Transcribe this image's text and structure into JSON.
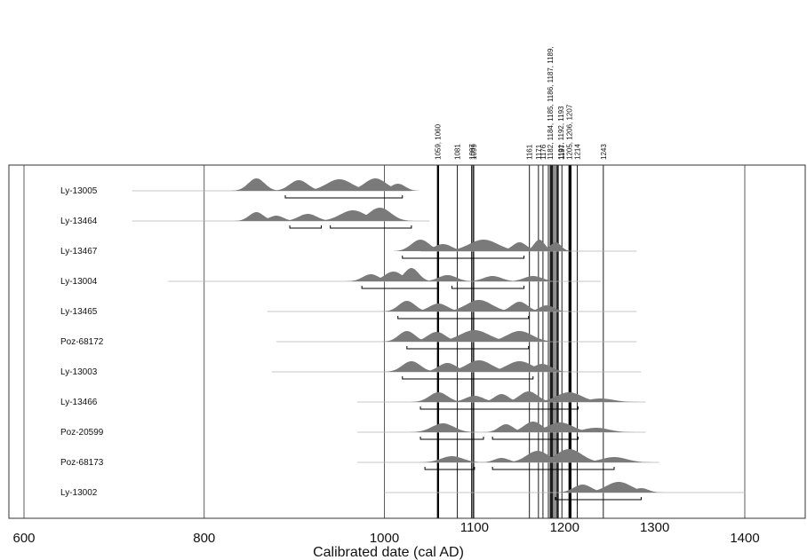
{
  "chart_data": {
    "type": "area",
    "xlabel": "Calibrated date (cal AD)",
    "x_ticks": [
      600,
      800,
      1000,
      1100,
      1200,
      1300,
      1400
    ],
    "xlim": [
      590,
      1450
    ],
    "events": [
      {
        "label": "1059, 1060",
        "years": [
          1059,
          1060
        ]
      },
      {
        "label": "1081",
        "years": [
          1081
        ]
      },
      {
        "label": "1097",
        "years": [
          1097
        ]
      },
      {
        "label": "1099",
        "years": [
          1099
        ]
      },
      {
        "label": "1161",
        "years": [
          1161
        ]
      },
      {
        "label": "1171",
        "years": [
          1171
        ]
      },
      {
        "label": "1176",
        "years": [
          1176
        ]
      },
      {
        "label": "1182, 1184, 1185, 1186, 1187, 1189,",
        "years": [
          1182,
          1184,
          1185,
          1186,
          1187,
          1189
        ]
      },
      {
        "label": "1191, 1192, 1193",
        "years": [
          1191,
          1192,
          1193
        ]
      },
      {
        "label": "1197",
        "years": [
          1197
        ]
      },
      {
        "label": "1205, 1206, 1207",
        "years": [
          1205,
          1206,
          1207
        ]
      },
      {
        "label": "1214",
        "years": [
          1214
        ]
      },
      {
        "label": "1243",
        "years": [
          1243
        ]
      }
    ],
    "samples": [
      {
        "name": "Ly-13005",
        "tail": [
          720,
          1030
        ],
        "peaks": [
          [
            858,
            14,
            9
          ],
          [
            905,
            12,
            10
          ],
          [
            950,
            13,
            14
          ],
          [
            990,
            14,
            12
          ],
          [
            1015,
            8,
            8
          ]
        ],
        "ranges": [
          [
            890,
            1020
          ]
        ]
      },
      {
        "name": "Ly-13464",
        "tail": [
          720,
          1050
        ],
        "peaks": [
          [
            858,
            10,
            8
          ],
          [
            880,
            6,
            8
          ],
          [
            915,
            8,
            10
          ],
          [
            965,
            12,
            14
          ],
          [
            995,
            15,
            12
          ]
        ],
        "ranges": [
          [
            895,
            930
          ],
          [
            940,
            1030
          ]
        ]
      },
      {
        "name": "Ly-13467",
        "tail": [
          1040,
          1280
        ],
        "peaks": [
          [
            1040,
            13,
            10
          ],
          [
            1065,
            8,
            10
          ],
          [
            1110,
            13,
            16
          ],
          [
            1150,
            10,
            8
          ],
          [
            1172,
            13,
            6
          ],
          [
            1190,
            10,
            6
          ]
        ],
        "ranges": [
          [
            1020,
            1155
          ]
        ]
      },
      {
        "name": "Ly-13004",
        "tail": [
          760,
          1240
        ],
        "peaks": [
          [
            985,
            8,
            9
          ],
          [
            1010,
            11,
            10
          ],
          [
            1030,
            15,
            8
          ],
          [
            1070,
            7,
            10
          ],
          [
            1120,
            6,
            10
          ],
          [
            1165,
            6,
            10
          ]
        ],
        "ranges": [
          [
            975,
            1060
          ],
          [
            1075,
            1155
          ]
        ]
      },
      {
        "name": "Ly-13465",
        "tail": [
          870,
          1280
        ],
        "peaks": [
          [
            1025,
            12,
            9
          ],
          [
            1060,
            9,
            10
          ],
          [
            1105,
            13,
            14
          ],
          [
            1150,
            11,
            9
          ],
          [
            1180,
            7,
            8
          ]
        ],
        "ranges": [
          [
            1015,
            1160
          ]
        ]
      },
      {
        "name": "Poz-68172",
        "tail": [
          880,
          1280
        ],
        "peaks": [
          [
            1025,
            12,
            9
          ],
          [
            1058,
            11,
            10
          ],
          [
            1100,
            13,
            16
          ],
          [
            1150,
            12,
            14
          ]
        ],
        "ranges": [
          [
            1025,
            1160
          ]
        ]
      },
      {
        "name": "Ly-13003",
        "tail": [
          875,
          1285
        ],
        "peaks": [
          [
            1030,
            12,
            10
          ],
          [
            1070,
            10,
            10
          ],
          [
            1105,
            13,
            14
          ],
          [
            1150,
            12,
            14
          ],
          [
            1175,
            9,
            10
          ]
        ],
        "ranges": [
          [
            1020,
            1165
          ]
        ]
      },
      {
        "name": "Ly-13466",
        "tail": [
          970,
          1290
        ],
        "peaks": [
          [
            1060,
            11,
            10
          ],
          [
            1100,
            7,
            10
          ],
          [
            1130,
            9,
            8
          ],
          [
            1160,
            12,
            10
          ],
          [
            1205,
            11,
            14
          ],
          [
            1240,
            4,
            14
          ]
        ],
        "ranges": [
          [
            1040,
            1215
          ]
        ]
      },
      {
        "name": "Poz-20599",
        "tail": [
          970,
          1290
        ],
        "peaks": [
          [
            1065,
            10,
            12
          ],
          [
            1135,
            9,
            8
          ],
          [
            1165,
            12,
            10
          ],
          [
            1195,
            11,
            14
          ],
          [
            1235,
            5,
            14
          ]
        ],
        "ranges": [
          [
            1040,
            1110
          ],
          [
            1120,
            1215
          ]
        ]
      },
      {
        "name": "Poz-68173",
        "tail": [
          970,
          1305
        ],
        "peaks": [
          [
            1075,
            7,
            12
          ],
          [
            1130,
            5,
            8
          ],
          [
            1170,
            13,
            12
          ],
          [
            1205,
            15,
            14
          ],
          [
            1255,
            6,
            14
          ]
        ],
        "ranges": [
          [
            1045,
            1100
          ],
          [
            1120,
            1255
          ]
        ]
      },
      {
        "name": "Ly-13002",
        "tail": [
          1000,
          1400
        ],
        "peaks": [
          [
            1220,
            9,
            10
          ],
          [
            1260,
            12,
            14
          ],
          [
            1285,
            5,
            8
          ]
        ],
        "ranges": [
          [
            1190,
            1285
          ]
        ]
      }
    ]
  }
}
